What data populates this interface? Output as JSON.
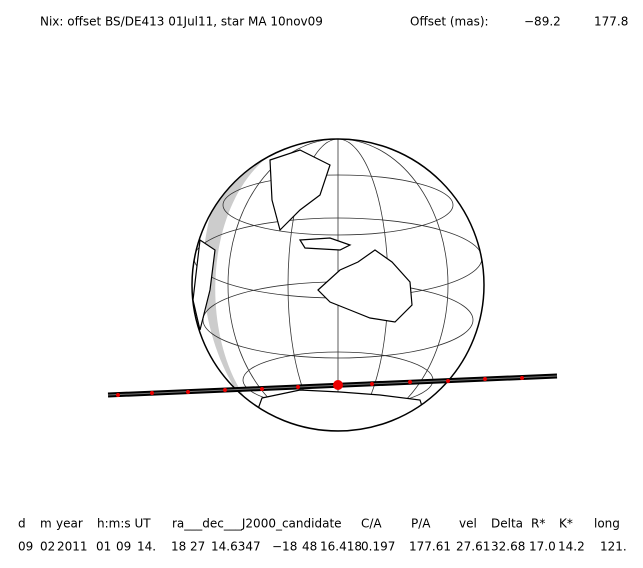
{
  "header": {
    "title": "Nix: offset BS/DE413 01Jul11, star MA 10nov09",
    "offset_label": "Offset (mas):",
    "offset_values": [
      "−89.2",
      "177.8"
    ]
  },
  "table": {
    "columns": [
      "d",
      "m",
      "year",
      "h:m:s UT",
      "ra___dec___J2000_candidate",
      "C/A",
      "P/A",
      "vel",
      "Delta",
      "R*",
      "K*",
      "long"
    ],
    "rows": [
      [
        "09",
        "02",
        "2011",
        "01",
        "09",
        "14.",
        "18",
        "27",
        "14.6347",
        "−18",
        "48",
        "16.418",
        "0.197",
        "177.61",
        "27.61",
        "32.68",
        "17.0",
        "14.2",
        "121."
      ]
    ]
  }
}
